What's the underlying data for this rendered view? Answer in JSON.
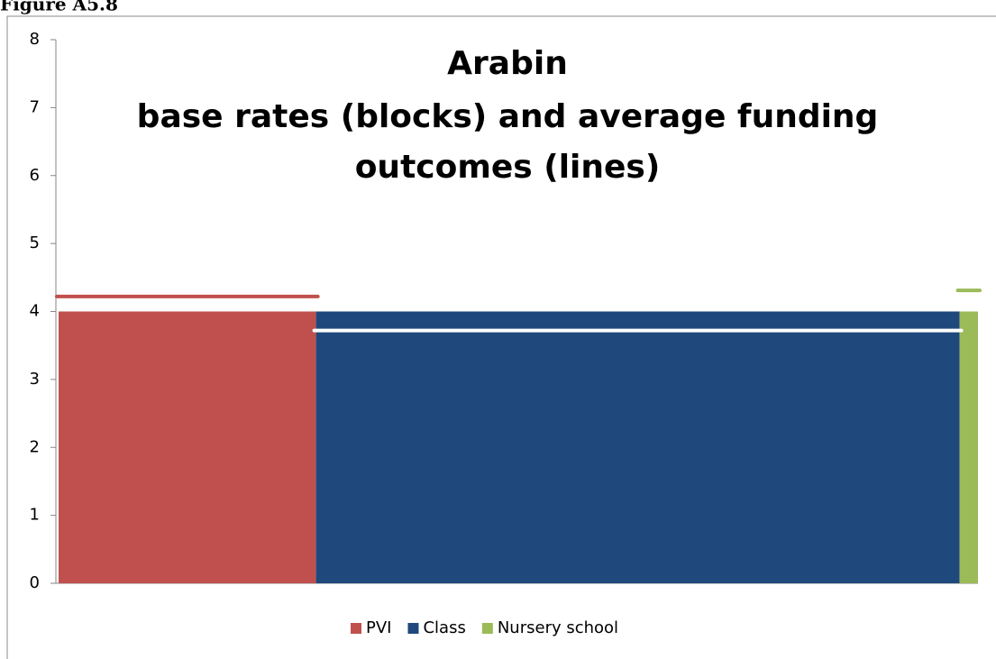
{
  "figure_label": "Figure A5.8",
  "chart_data": {
    "type": "mekko",
    "title": [
      "Arabin",
      "base rates (blocks) and average funding",
      "outcomes (lines)"
    ],
    "ylim": [
      0,
      8
    ],
    "yticks": [
      0,
      1,
      2,
      3,
      4,
      5,
      6,
      7,
      8
    ],
    "legend": "bottom",
    "series": [
      {
        "name": "PVI",
        "color": "#c0504d",
        "value": 4,
        "width": 28,
        "outcome": 4.22,
        "outcome_color": "#c0504d"
      },
      {
        "name": "Class",
        "color": "#1f497d",
        "value": 4,
        "width": 70,
        "outcome": 3.72,
        "outcome_color": "#ffffff"
      },
      {
        "name": "Nursery school",
        "color": "#9bbb59",
        "value": 4,
        "width": 2,
        "outcome": 4.31,
        "outcome_color": "#9bbb59"
      }
    ]
  }
}
